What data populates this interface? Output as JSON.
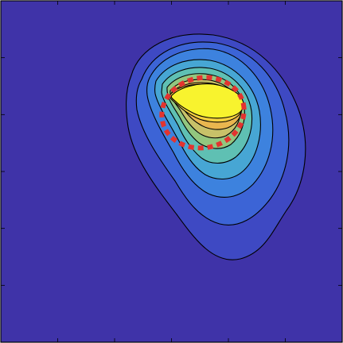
{
  "colors": {
    "background": "#3F33A8",
    "levels": [
      "#3F33A8",
      "#3E49C3",
      "#3C64D6",
      "#3D82DE",
      "#47A6D4",
      "#5FC0B3",
      "#92C67F",
      "#C8C169",
      "#E9B64F",
      "#F4D03F",
      "#F8F32E"
    ],
    "contour_line": "#000000",
    "marker_outline": "#E3342F"
  },
  "chart_data": {
    "type": "contour",
    "title": "",
    "xlabel": "",
    "ylabel": "",
    "grid": false,
    "legend": "none",
    "x_ticks_shown": 7,
    "y_ticks_shown": 7,
    "levels": 10,
    "peak_level": 10,
    "peak_region": "upper-center-right",
    "marker": {
      "shape": "ellipse",
      "style": "dotted",
      "color": "red",
      "encloses": "peak"
    }
  }
}
